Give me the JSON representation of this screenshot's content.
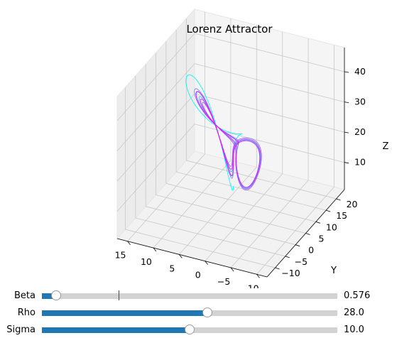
{
  "chart_data": {
    "type": "line3d",
    "title": "Lorenz Attractor",
    "xlabel": "X",
    "ylabel": "Y",
    "zlabel": "Z",
    "xlim": [
      -12,
      17
    ],
    "ylim": [
      -14,
      24
    ],
    "zlim": [
      1,
      48
    ],
    "x_ticks": [
      "−10",
      "−5",
      "0",
      "5",
      "10",
      "15"
    ],
    "y_ticks": [
      "−10",
      "−5",
      "0",
      "5",
      "10",
      "15",
      "20"
    ],
    "z_ticks": [
      "10",
      "20",
      "30",
      "40"
    ],
    "grid": true,
    "colormap": "cool",
    "parameters": {
      "sigma": 10.0,
      "rho": 28.0,
      "beta": 0.576
    }
  },
  "sliders": [
    {
      "label": "Beta",
      "value": 0.576,
      "display": "0.576",
      "min": 0.1,
      "max": 10.0,
      "init": 2.667
    },
    {
      "label": "Rho",
      "value": 28.0,
      "display": "28.0",
      "min": 0.0,
      "max": 50.0
    },
    {
      "label": "Sigma",
      "value": 10.0,
      "display": "10.0",
      "min": 0.0,
      "max": 20.0
    }
  ],
  "colors": {
    "slider_fill": "#1f77b4",
    "slider_track": "#d3d3d3",
    "init_marker": "#ff0000"
  }
}
